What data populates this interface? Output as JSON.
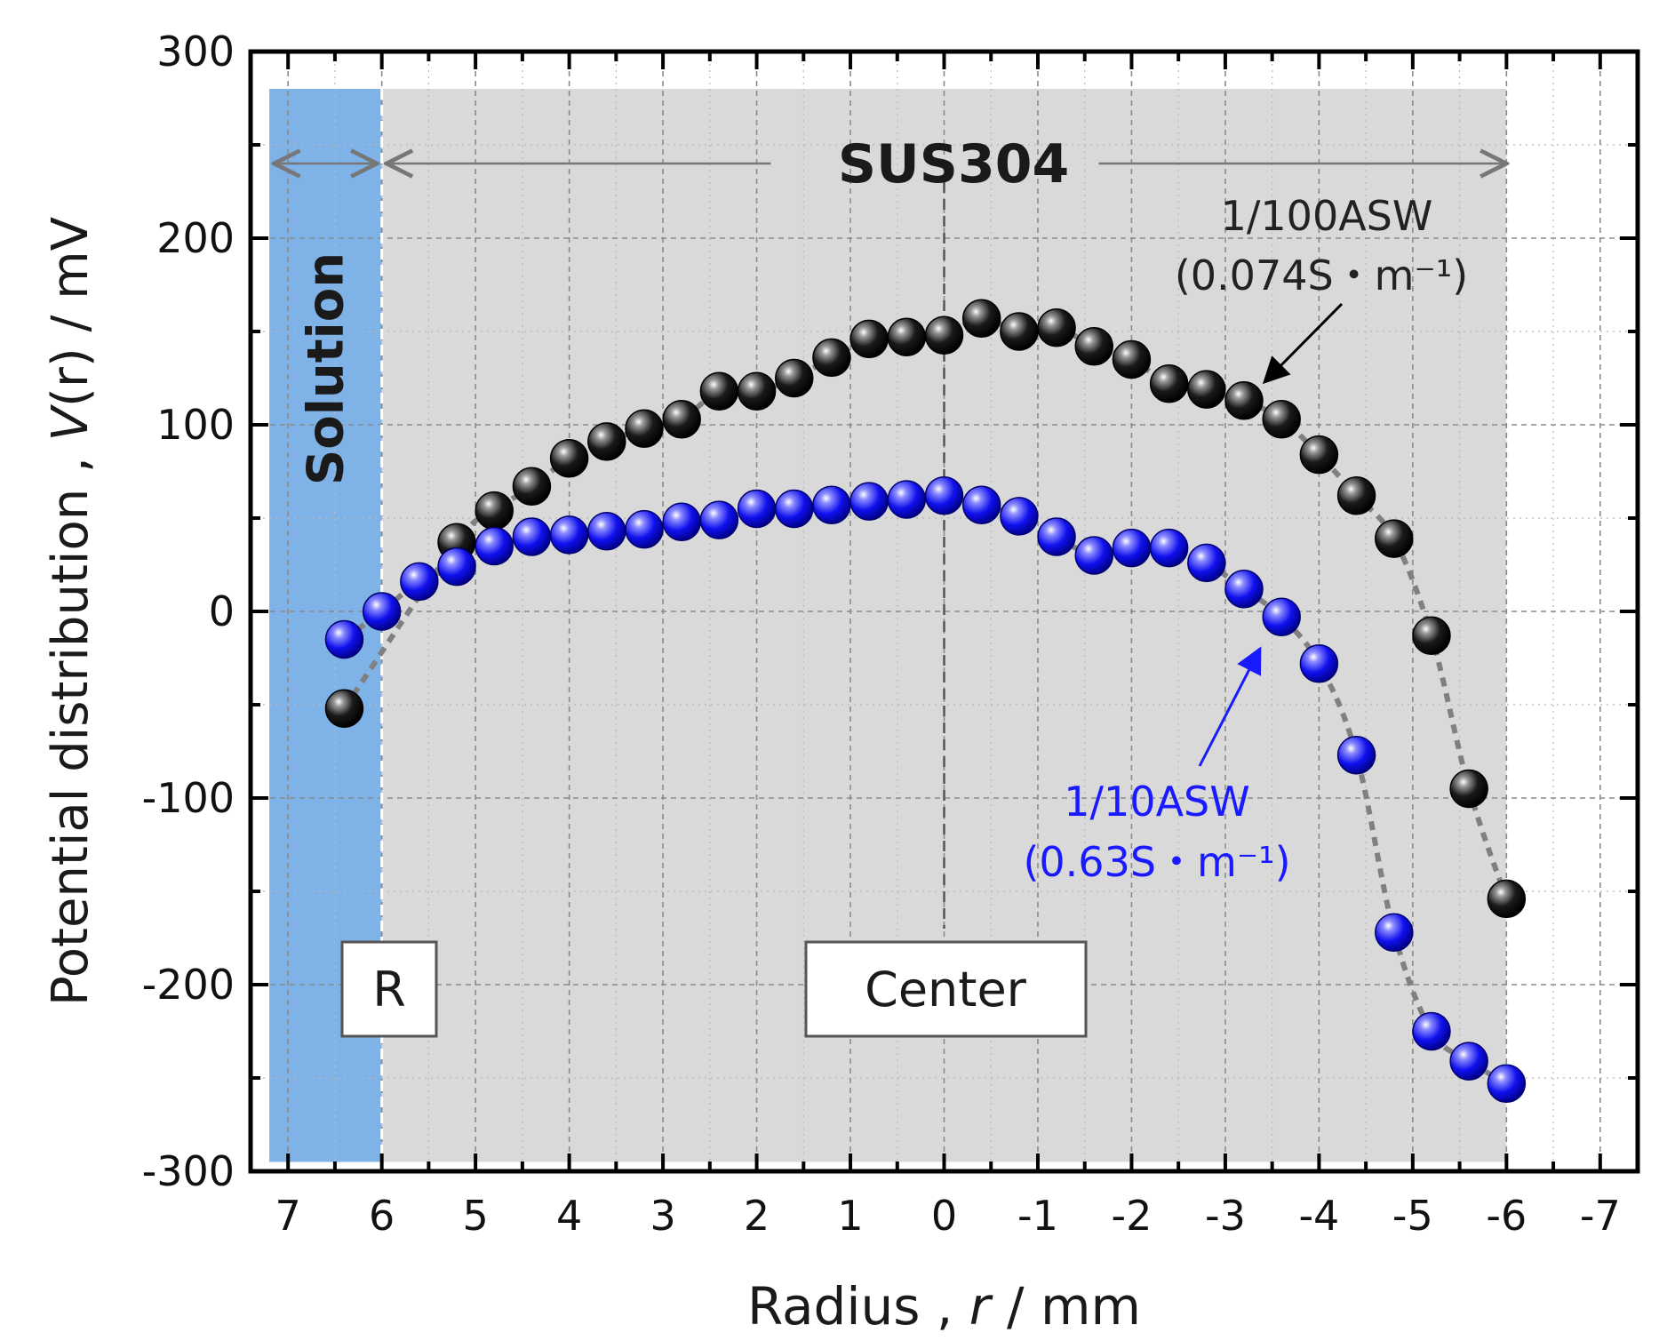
{
  "chart_data": {
    "type": "scatter",
    "xlabel": {
      "prefix": "Radius , ",
      "var": "r",
      "suffix": " / mm"
    },
    "ylabel": {
      "prefix": "Potential distribution , ",
      "var": "V",
      "suffix": "(r) / mV"
    },
    "xlim": [
      7.4,
      -7.4
    ],
    "ylim": [
      -300,
      300
    ],
    "xticks": [
      7,
      6,
      5,
      4,
      3,
      2,
      1,
      0,
      -1,
      -2,
      -3,
      -4,
      -5,
      -6,
      -7
    ],
    "yticks": [
      300,
      200,
      100,
      0,
      -100,
      -200,
      -300
    ],
    "grid": true,
    "regions": [
      {
        "name": "Solution",
        "x_from": 7.2,
        "x_to": 6.0,
        "color": "#7fb2e6"
      },
      {
        "name": "SUS304",
        "x_from": 6.0,
        "x_to": -6.0,
        "color": "#d9d9d9"
      }
    ],
    "series": [
      {
        "name": "1/100ASW",
        "conductivity": "(0.074S・m⁻¹)",
        "color": "#111111",
        "x": [
          6.4,
          5.2,
          4.8,
          4.4,
          4.0,
          3.6,
          3.2,
          2.8,
          2.4,
          2.0,
          1.6,
          1.2,
          0.8,
          0.4,
          0.0,
          -0.4,
          -0.8,
          -1.2,
          -1.6,
          -2.0,
          -2.4,
          -2.8,
          -3.2,
          -3.6,
          -4.0,
          -4.4,
          -4.8,
          -5.2,
          -5.6,
          -6.0
        ],
        "y": [
          -52,
          37,
          54,
          67,
          82,
          91,
          98,
          103,
          118,
          118,
          125,
          136,
          146,
          147,
          148,
          157,
          150,
          152,
          142,
          135,
          122,
          119,
          113,
          103,
          84,
          62,
          39,
          -13,
          -95,
          -154
        ]
      },
      {
        "name": "1/10ASW",
        "conductivity": "(0.63S・m⁻¹)",
        "color": "#1a1aff",
        "x": [
          6.4,
          6.0,
          5.6,
          5.2,
          4.8,
          4.4,
          4.0,
          3.6,
          3.2,
          2.8,
          2.4,
          2.0,
          1.6,
          1.2,
          0.8,
          0.4,
          0.0,
          -0.4,
          -0.8,
          -1.2,
          -1.6,
          -2.0,
          -2.4,
          -2.8,
          -3.2,
          -3.6,
          -4.0,
          -4.4,
          -4.8,
          -5.2,
          -5.6,
          -6.0
        ],
        "y": [
          -15,
          0,
          16,
          24,
          35,
          40,
          41,
          43,
          44,
          48,
          49,
          55,
          55,
          57,
          59,
          60,
          62,
          57,
          51,
          40,
          30,
          34,
          34,
          26,
          12,
          -3,
          -28,
          -77,
          -172,
          -225,
          -241,
          -253
        ]
      }
    ],
    "annotations": {
      "material": "SUS304",
      "solution": "Solution",
      "r_box": "R",
      "center_box": "Center"
    }
  }
}
